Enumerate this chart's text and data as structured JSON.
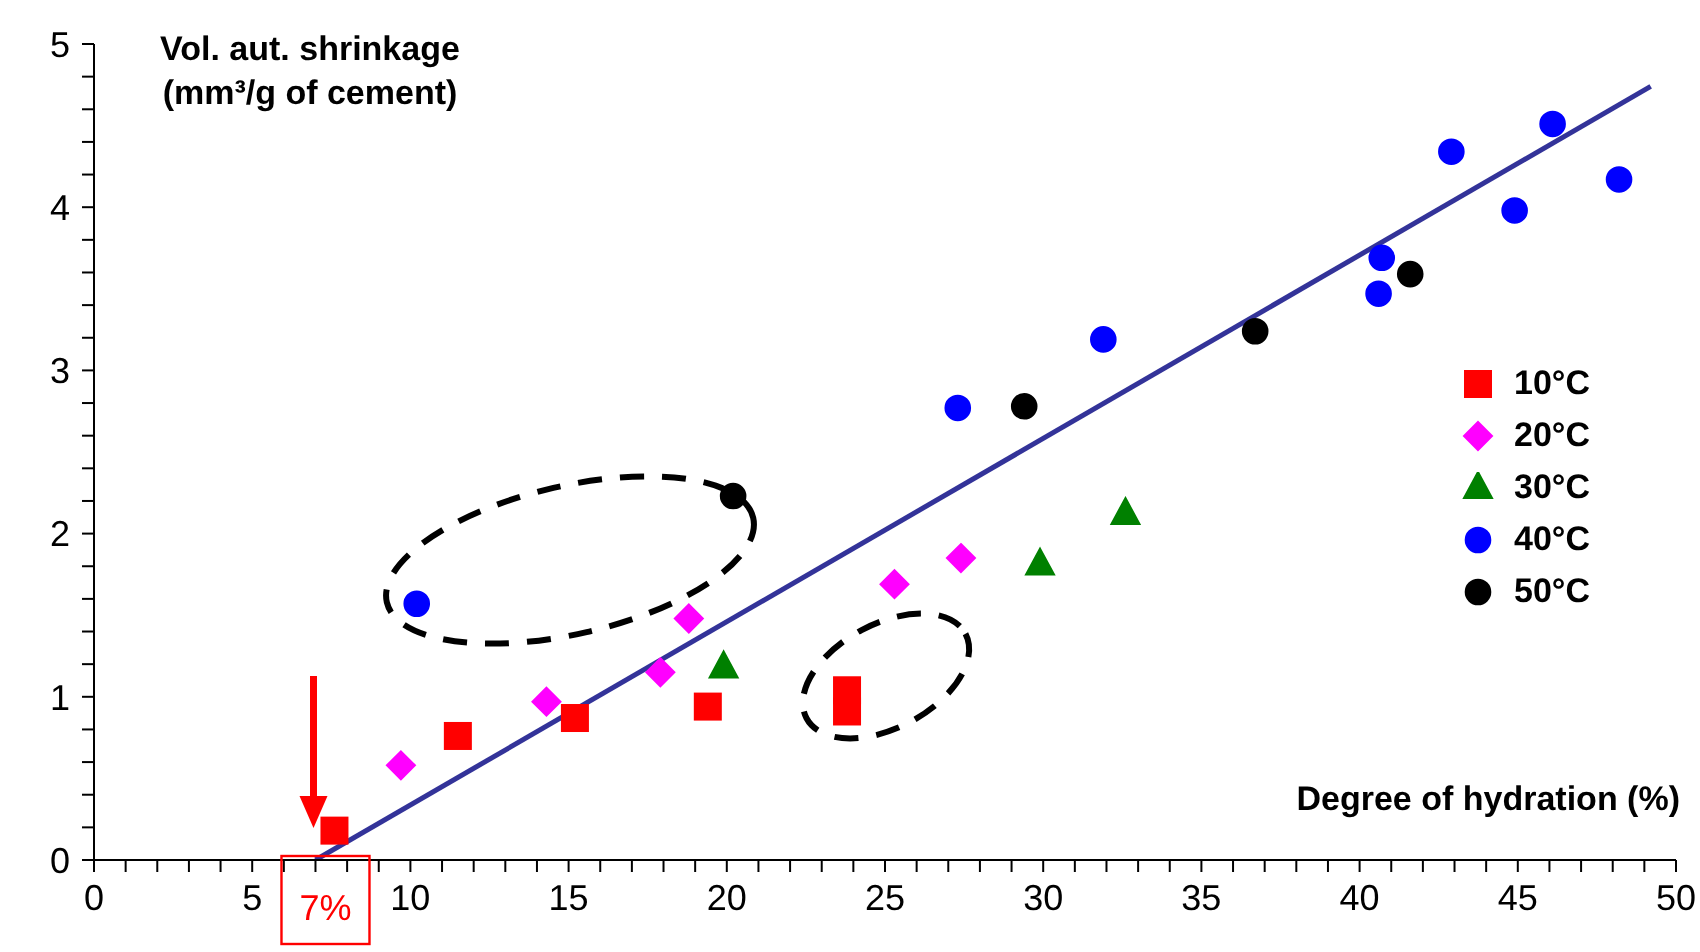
{
  "chart_data": {
    "type": "scatter",
    "xlabel": "Degree of hydration (%)",
    "ylabel": "Vol. aut. shrinkage (mm³/g of cement)",
    "xlim": [
      0,
      50
    ],
    "ylim": [
      0,
      5
    ],
    "xticks": [
      0,
      {
        "value": 1,
        "label": null
      },
      {
        "value": 2,
        "label": null
      },
      {
        "value": 3,
        "label": null
      },
      {
        "value": 4,
        "label": null
      },
      5,
      {
        "value": 6,
        "label": null
      },
      {
        "value": 7,
        "label": null
      },
      {
        "value": 8,
        "label": null
      },
      {
        "value": 9,
        "label": null
      },
      10,
      {
        "value": 11,
        "label": null
      },
      {
        "value": 12,
        "label": null
      },
      {
        "value": 13,
        "label": null
      },
      {
        "value": 14,
        "label": null
      },
      15,
      {
        "value": 16,
        "label": null
      },
      {
        "value": 17,
        "label": null
      },
      {
        "value": 18,
        "label": null
      },
      {
        "value": 19,
        "label": null
      },
      20,
      {
        "value": 21,
        "label": null
      },
      {
        "value": 22,
        "label": null
      },
      {
        "value": 23,
        "label": null
      },
      {
        "value": 24,
        "label": null
      },
      25,
      {
        "value": 26,
        "label": null
      },
      {
        "value": 27,
        "label": null
      },
      {
        "value": 28,
        "label": null
      },
      {
        "value": 29,
        "label": null
      },
      30,
      {
        "value": 31,
        "label": null
      },
      {
        "value": 32,
        "label": null
      },
      {
        "value": 33,
        "label": null
      },
      {
        "value": 34,
        "label": null
      },
      35,
      {
        "value": 36,
        "label": null
      },
      {
        "value": 37,
        "label": null
      },
      {
        "value": 38,
        "label": null
      },
      {
        "value": 39,
        "label": null
      },
      40,
      {
        "value": 41,
        "label": null
      },
      {
        "value": 42,
        "label": null
      },
      {
        "value": 43,
        "label": null
      },
      {
        "value": 44,
        "label": null
      },
      45,
      {
        "value": 46,
        "label": null
      },
      {
        "value": 47,
        "label": null
      },
      {
        "value": 48,
        "label": null
      },
      {
        "value": 49,
        "label": null
      },
      50
    ],
    "yticks": [
      0,
      {
        "value": 0.2,
        "label": null
      },
      {
        "value": 0.4,
        "label": null
      },
      {
        "value": 0.6,
        "label": null
      },
      {
        "value": 0.8,
        "label": null
      },
      1,
      {
        "value": 1.2,
        "label": null
      },
      {
        "value": 1.4,
        "label": null
      },
      {
        "value": 1.6,
        "label": null
      },
      {
        "value": 1.8,
        "label": null
      },
      2,
      {
        "value": 2.2,
        "label": null
      },
      {
        "value": 2.4,
        "label": null
      },
      {
        "value": 2.6,
        "label": null
      },
      {
        "value": 2.8,
        "label": null
      },
      3,
      {
        "value": 3.2,
        "label": null
      },
      {
        "value": 3.4,
        "label": null
      },
      {
        "value": 3.6,
        "label": null
      },
      {
        "value": 3.8,
        "label": null
      },
      4,
      {
        "value": 4.2,
        "label": null
      },
      {
        "value": 4.4,
        "label": null
      },
      {
        "value": 4.6,
        "label": null
      },
      {
        "value": 4.8,
        "label": null
      },
      5
    ],
    "grid": false,
    "legend": "right",
    "series": [
      {
        "name": "10°C",
        "color": "#ff0000",
        "marker": "square",
        "x": [
          7.6,
          11.5,
          15.2,
          19.4,
          23.8,
          23.8
        ],
        "values": [
          0.18,
          0.76,
          0.87,
          0.94,
          1.04,
          0.91
        ]
      },
      {
        "name": "20°C",
        "color": "#ff00ff",
        "marker": "diamond",
        "x": [
          9.7,
          14.3,
          17.9,
          18.8,
          25.3,
          27.4
        ],
        "values": [
          0.58,
          0.97,
          1.15,
          1.48,
          1.69,
          1.85
        ]
      },
      {
        "name": "30°C",
        "color": "#008000",
        "marker": "triangle",
        "x": [
          19.9,
          29.9,
          32.6
        ],
        "values": [
          1.18,
          1.81,
          2.12
        ]
      },
      {
        "name": "40°C",
        "color": "#0000ff",
        "marker": "circle",
        "x": [
          10.2,
          27.3,
          31.9,
          40.7,
          40.6,
          42.9,
          44.9,
          46.1,
          48.2
        ],
        "values": [
          1.57,
          2.77,
          3.19,
          3.69,
          3.47,
          4.34,
          3.98,
          4.51,
          4.17
        ]
      },
      {
        "name": "50°C",
        "color": "#000000",
        "marker": "circle",
        "x": [
          20.2,
          29.4,
          36.7,
          41.6
        ],
        "values": [
          2.23,
          2.78,
          3.24,
          3.59
        ]
      },
      {
        "type": "line",
        "color": "#333399",
        "marker": "none",
        "x": [
          7,
          49.2
        ],
        "values": [
          0,
          4.74
        ]
      }
    ],
    "annotations": [
      {
        "text": "7%",
        "x": 7,
        "y": 0
      }
    ]
  }
}
